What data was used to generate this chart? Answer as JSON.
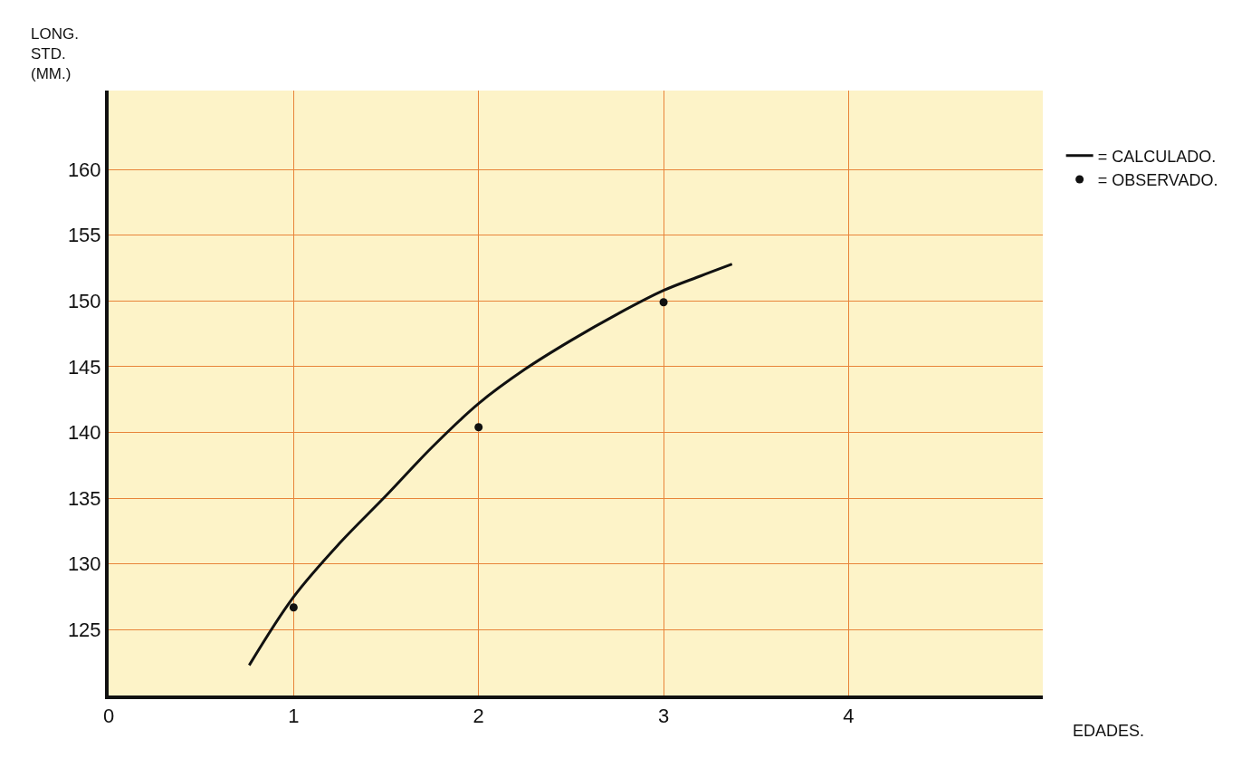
{
  "chart_data": {
    "type": "scatter",
    "xlabel": "EDADES.",
    "ylabel": "LONG.\nSTD.\n(MM.)",
    "xlim": [
      0,
      5.05
    ],
    "ylim": [
      120,
      166
    ],
    "xticks": [
      0,
      1,
      2,
      3,
      4
    ],
    "yticks": [
      125,
      130,
      135,
      140,
      145,
      150,
      155,
      160
    ],
    "grid": true,
    "legend": "top right",
    "series": [
      {
        "name": "= CALCULADO.",
        "type": "line",
        "color": "#111111",
        "marker": "none",
        "line_style": "solid",
        "x": [
          0.76,
          1,
          1.25,
          1.5,
          1.75,
          2,
          2.25,
          2.5,
          2.75,
          3,
          3.2,
          3.37
        ],
        "values": [
          122.3,
          127.5,
          131.6,
          135.2,
          138.9,
          142.2,
          144.8,
          147,
          149,
          150.8,
          151.9,
          152.8
        ]
      },
      {
        "name": "= OBSERVADO.",
        "color": "#111111",
        "marker": "circle",
        "x": [
          1,
          2,
          3
        ],
        "values": [
          126.7,
          140.4,
          149.9
        ]
      }
    ]
  }
}
